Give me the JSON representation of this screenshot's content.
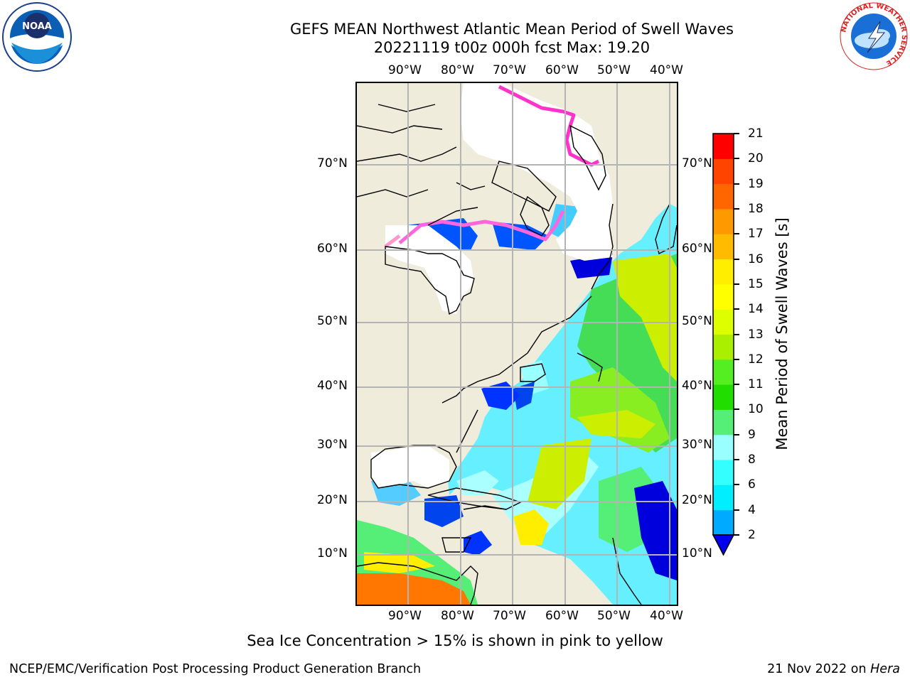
{
  "header": {
    "title_line1": "GEFS MEAN Northwest Atlantic Mean Period of Swell Waves",
    "title_line2": "20221119 t00z 000h fcst   Max: 19.20"
  },
  "logos": {
    "noaa_text": "NOAA",
    "nws_text": "NATIONAL WEATHER SERVICE"
  },
  "map": {
    "lon_labels": [
      "90°W",
      "80°W",
      "70°W",
      "60°W",
      "50°W",
      "40°W"
    ],
    "lat_labels": [
      "70°N",
      "60°N",
      "50°N",
      "40°N",
      "30°N",
      "20°N",
      "10°N"
    ],
    "colors": {
      "land": "#efecdc",
      "grid": "#b4b4b4",
      "coast": "#000000"
    }
  },
  "colorbar": {
    "title": "Mean Period of Swell Waves [s]",
    "labels": [
      "2",
      "4",
      "6",
      "8",
      "9",
      "10",
      "11",
      "12",
      "13",
      "14",
      "15",
      "16",
      "17",
      "18",
      "19",
      "20",
      "21"
    ],
    "colors": [
      "#0033ff",
      "#00aaff",
      "#00eeff",
      "#33ffff",
      "#99ffff",
      "#55ee77",
      "#22dd00",
      "#55ee22",
      "#aaee00",
      "#ddff00",
      "#ffff00",
      "#ffee00",
      "#ffbb00",
      "#ff9900",
      "#ff6600",
      "#ff4400",
      "#ff0000"
    ],
    "extend_color": "#0000ee"
  },
  "note": "Sea Ice Concentration > 15% is shown in pink to yellow",
  "footer": {
    "left": "NCEP/EMC/Verification Post Processing Product Generation Branch",
    "right_date": "21 Nov 2022 on",
    "right_host": "Hera"
  }
}
